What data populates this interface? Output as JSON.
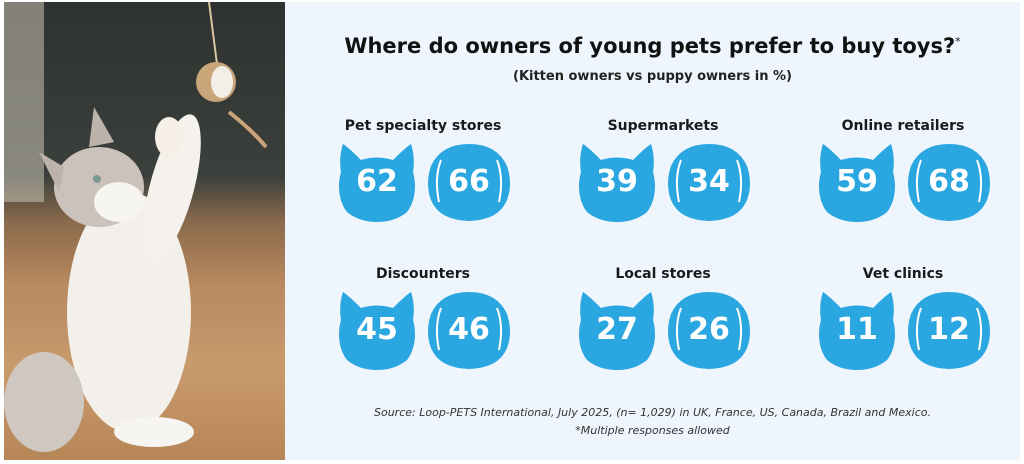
{
  "chart_data": {
    "type": "icon-comparison",
    "title": "Where do owners of young pets prefer to buy toys?",
    "title_marker": "*",
    "subtitle": "(Kitten owners vs puppy owners in %)",
    "series": [
      {
        "icon": "cat-head",
        "values": [
          62,
          39,
          59,
          45,
          27,
          11
        ]
      },
      {
        "icon": "dog-head",
        "values": [
          66,
          34,
          68,
          46,
          26,
          12
        ]
      }
    ],
    "categories": [
      "Pet specialty stores",
      "Supermarkets",
      "Online retailers",
      "Discounters",
      "Local stores",
      "Vet clinics"
    ],
    "source": "Source: Loop-PETS International, July 2025, (n= 1,029) in UK, France, US, Canada, Brazil and Mexico.",
    "note": "*Multiple responses allowed",
    "colors": {
      "icon": "#2aa6e0",
      "background": "#eef5fc"
    }
  },
  "photo": {
    "description_icon": "kitten-playing-photo"
  }
}
